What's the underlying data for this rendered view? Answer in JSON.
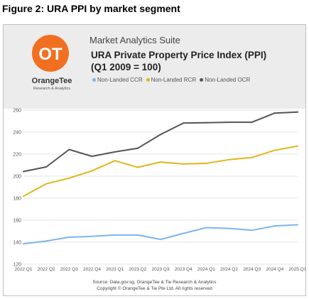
{
  "figure_caption": "Figure 2: URA PPI by market segment",
  "header": {
    "logo_mark": "OT",
    "brand_name": "OrangeTee",
    "brand_sub": "Research & Analytics",
    "suite": "Market Analytics Suite",
    "title_line1": "URA Private Property Price Index (PPI)",
    "title_line2": "(Q1 2009 = 100)",
    "brand_color": "#f26f21"
  },
  "footer": {
    "source": "Source: Data.gov.sg, OrangeTee & Tie Research & Analytics",
    "copyright": "Copyright © OrangeTee & Tie Pte Ltd. All rights reserved"
  },
  "chart_data": {
    "type": "line",
    "title": "URA Private Property Price Index (PPI) (Q1 2009 = 100)",
    "xlabel": "",
    "ylabel": "",
    "ylim": [
      120,
      260
    ],
    "yticks": [
      120,
      140,
      160,
      180,
      200,
      220,
      240,
      260
    ],
    "grid": true,
    "legend_position": "top",
    "categories": [
      "2022 Q1",
      "2022 Q2",
      "2022 Q3",
      "2022 Q4",
      "2023 Q1",
      "2023 Q2",
      "2023 Q3",
      "2023 Q4",
      "2024 Q1",
      "2024 Q2",
      "2024 Q3",
      "2024 Q4",
      "2025 Q1"
    ],
    "series": [
      {
        "name": "Non-Landed CCR",
        "color": "#7cb5ec",
        "values": [
          138.5,
          141.0,
          144.5,
          145.3,
          146.5,
          146.5,
          142.5,
          148.0,
          153.2,
          152.5,
          150.8,
          154.8,
          155.8
        ]
      },
      {
        "name": "Non-Landed RCR",
        "color": "#e0b61a",
        "values": [
          181.8,
          193.0,
          198.2,
          204.8,
          214.0,
          208.0,
          212.8,
          211.0,
          211.6,
          215.0,
          217.0,
          223.5,
          227.3
        ]
      },
      {
        "name": "Non-Landed OCR",
        "color": "#555555",
        "values": [
          204.2,
          208.4,
          224.2,
          218.0,
          222.0,
          225.3,
          237.8,
          248.2,
          248.5,
          249.0,
          249.0,
          257.3,
          258.2
        ]
      }
    ]
  }
}
